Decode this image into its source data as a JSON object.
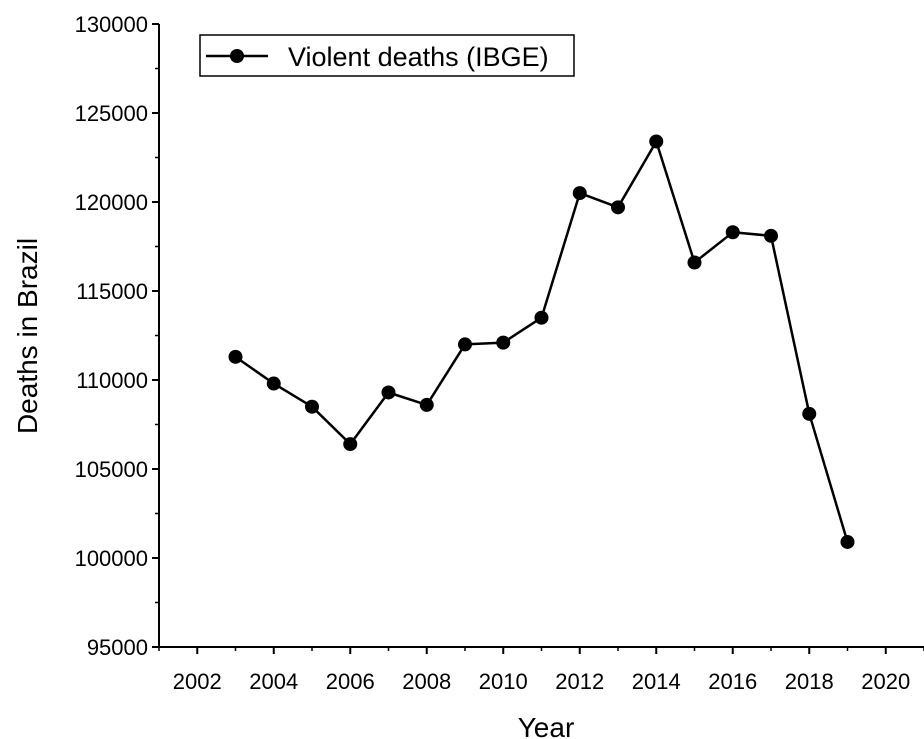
{
  "chart_data": {
    "type": "line",
    "title": "",
    "xlabel": "Year",
    "ylabel": "Deaths in Brazil",
    "xlim": [
      2001,
      2021
    ],
    "ylim": [
      95000,
      130000
    ],
    "x_ticks": [
      2002,
      2004,
      2006,
      2008,
      2010,
      2012,
      2014,
      2016,
      2018,
      2020
    ],
    "y_ticks": [
      95000,
      100000,
      105000,
      110000,
      115000,
      120000,
      125000,
      130000
    ],
    "grid": false,
    "legend_position": "top-left",
    "series": [
      {
        "name": "Violent deaths (IBGE)",
        "color": "#000000",
        "marker": "circle",
        "x": [
          2003,
          2004,
          2005,
          2006,
          2007,
          2008,
          2009,
          2010,
          2011,
          2012,
          2013,
          2014,
          2015,
          2016,
          2017,
          2018,
          2019
        ],
        "y": [
          111300,
          109800,
          108500,
          106400,
          109300,
          108600,
          112000,
          112100,
          113500,
          120500,
          119700,
          123400,
          116600,
          118300,
          118100,
          108100,
          100900
        ]
      }
    ]
  }
}
